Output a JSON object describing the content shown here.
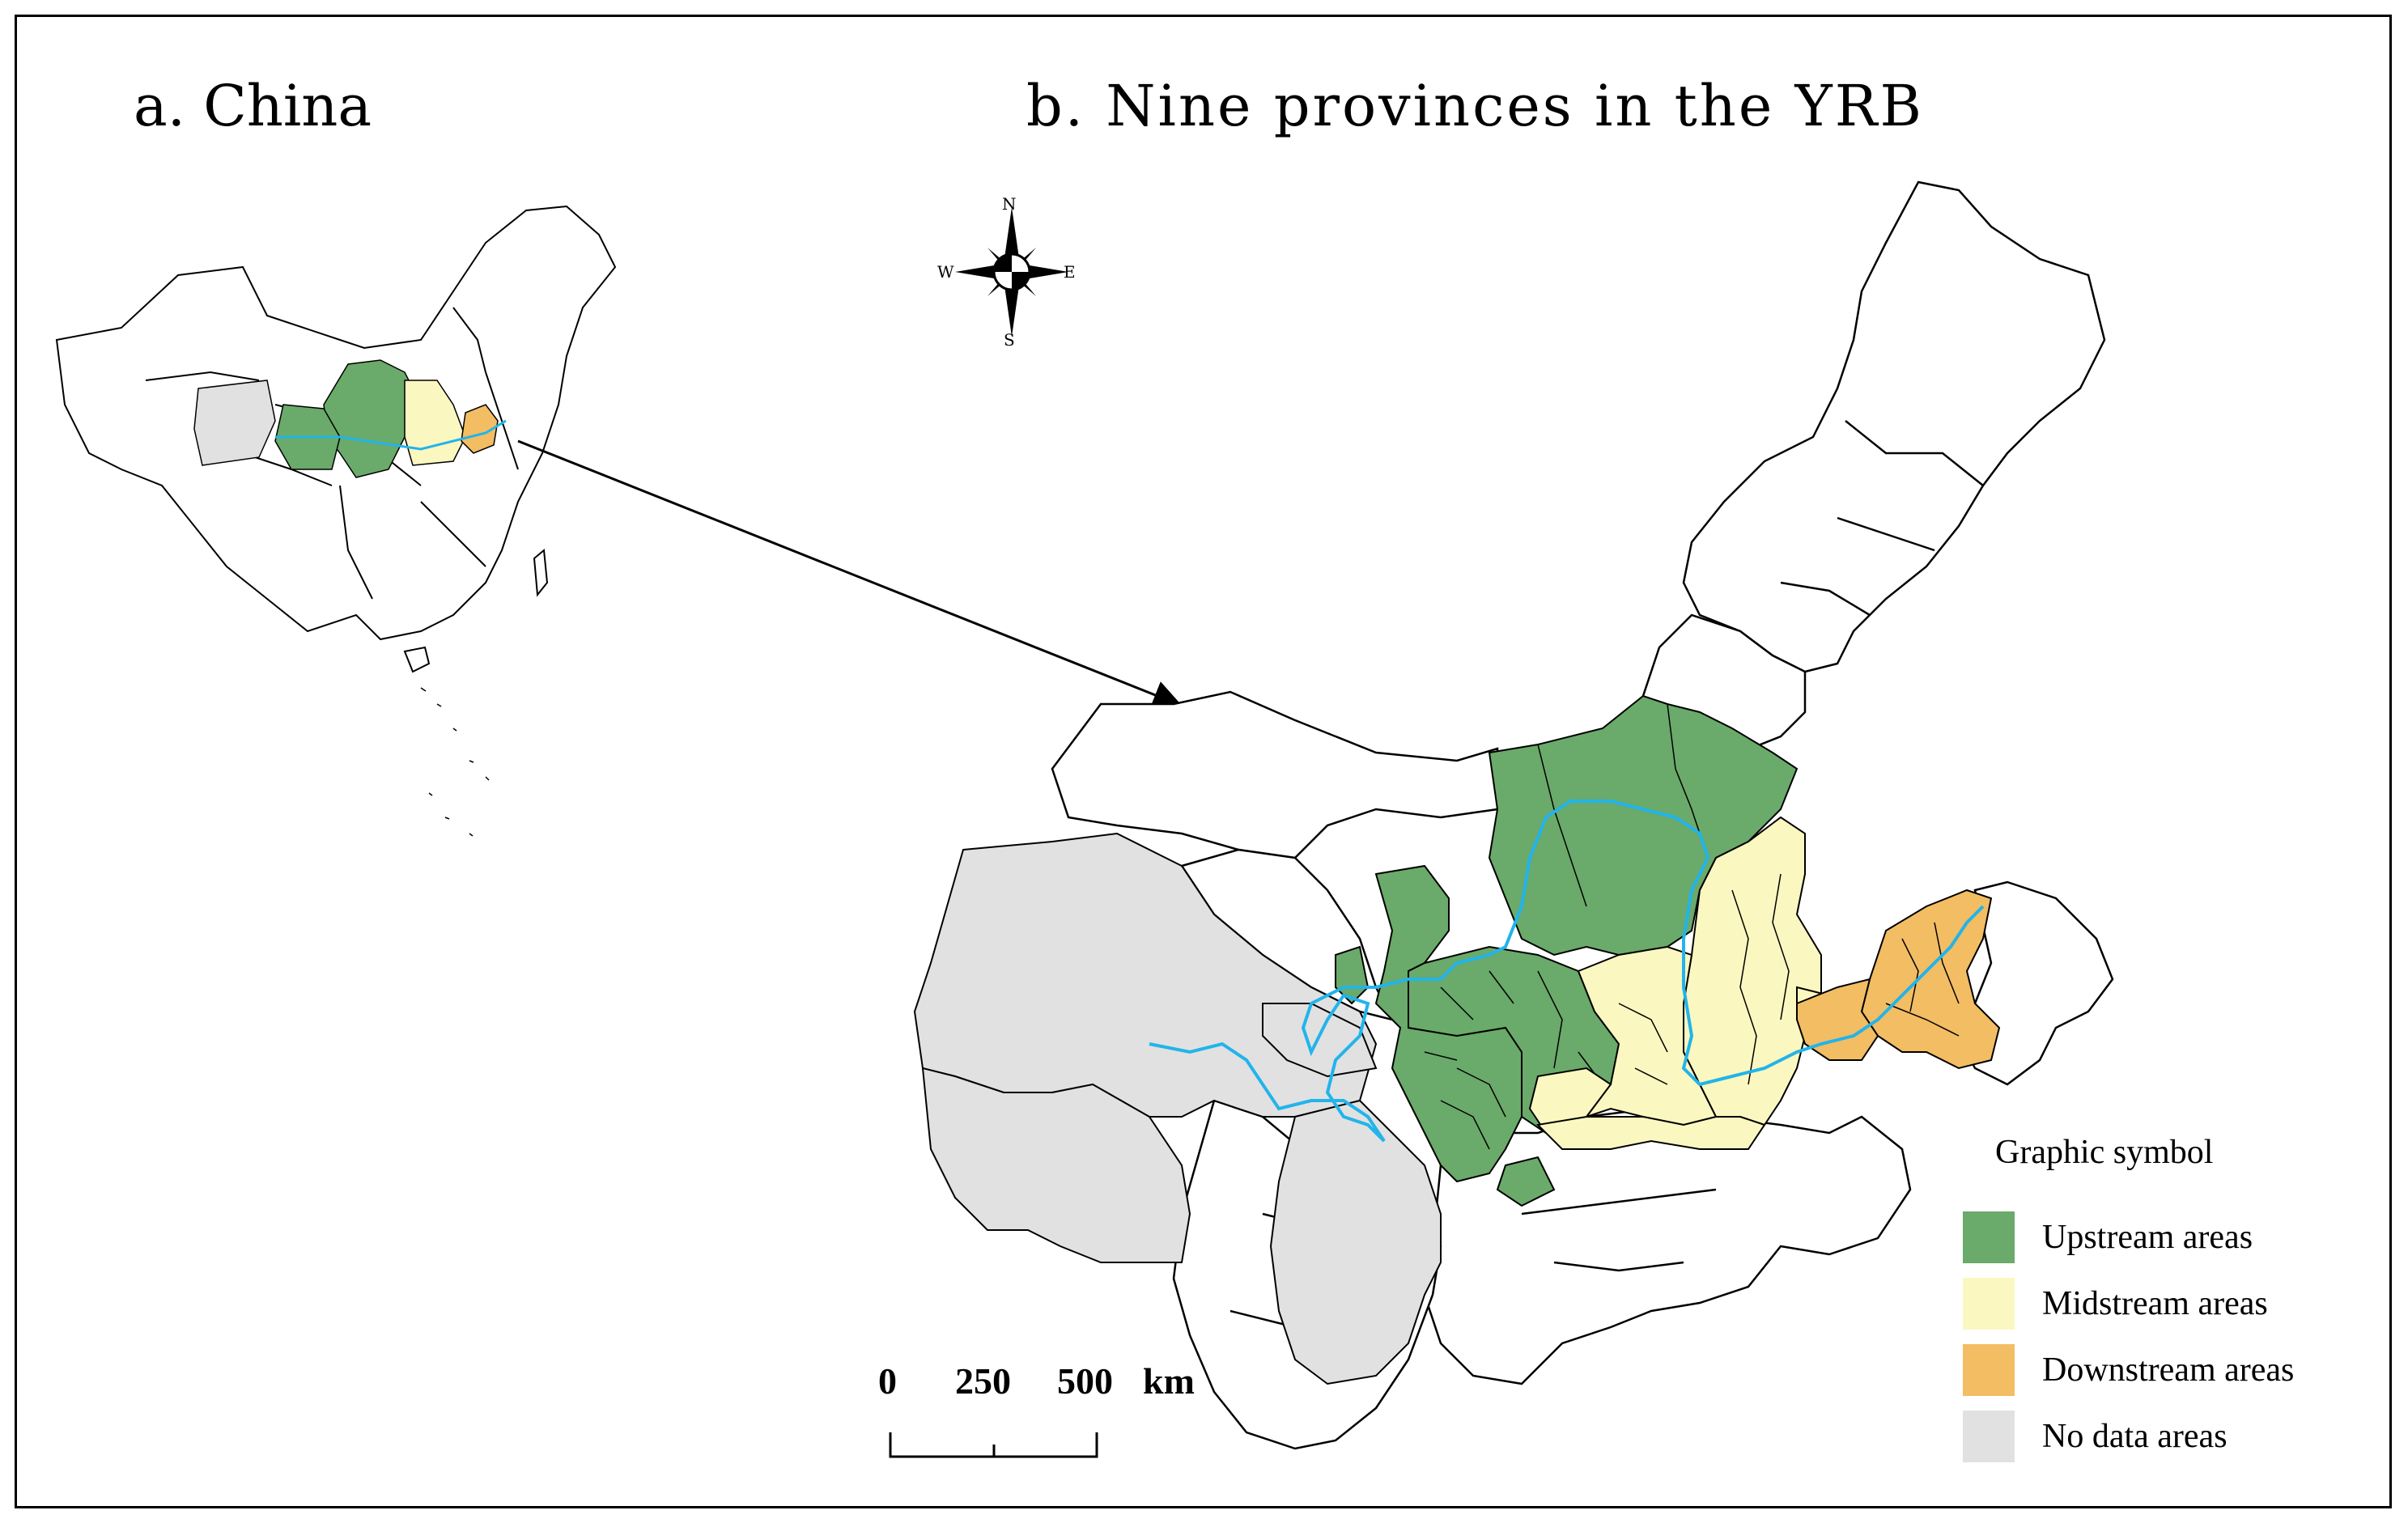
{
  "panels": {
    "a_title": "a. China",
    "b_title": "b. Nine provinces in the YRB"
  },
  "compass": {
    "n": "N",
    "s": "S",
    "e": "E",
    "w": "W"
  },
  "scale_bar": {
    "labels": [
      "0",
      "250",
      "500"
    ],
    "unit": "km"
  },
  "legend": {
    "title": "Graphic symbol",
    "items": [
      {
        "label": "Upstream areas",
        "color": "#6aaa6a"
      },
      {
        "label": "Midstream areas",
        "color": "#fbf7c0"
      },
      {
        "label": "Downstream areas",
        "color": "#f2bd63"
      },
      {
        "label": "No data areas",
        "color": "#e1e1e1"
      }
    ]
  },
  "colors": {
    "upstream": "#6aaa6a",
    "midstream": "#fbf7c0",
    "downstream": "#f2bd63",
    "nodata": "#e1e1e1",
    "river": "#22b4ea"
  }
}
